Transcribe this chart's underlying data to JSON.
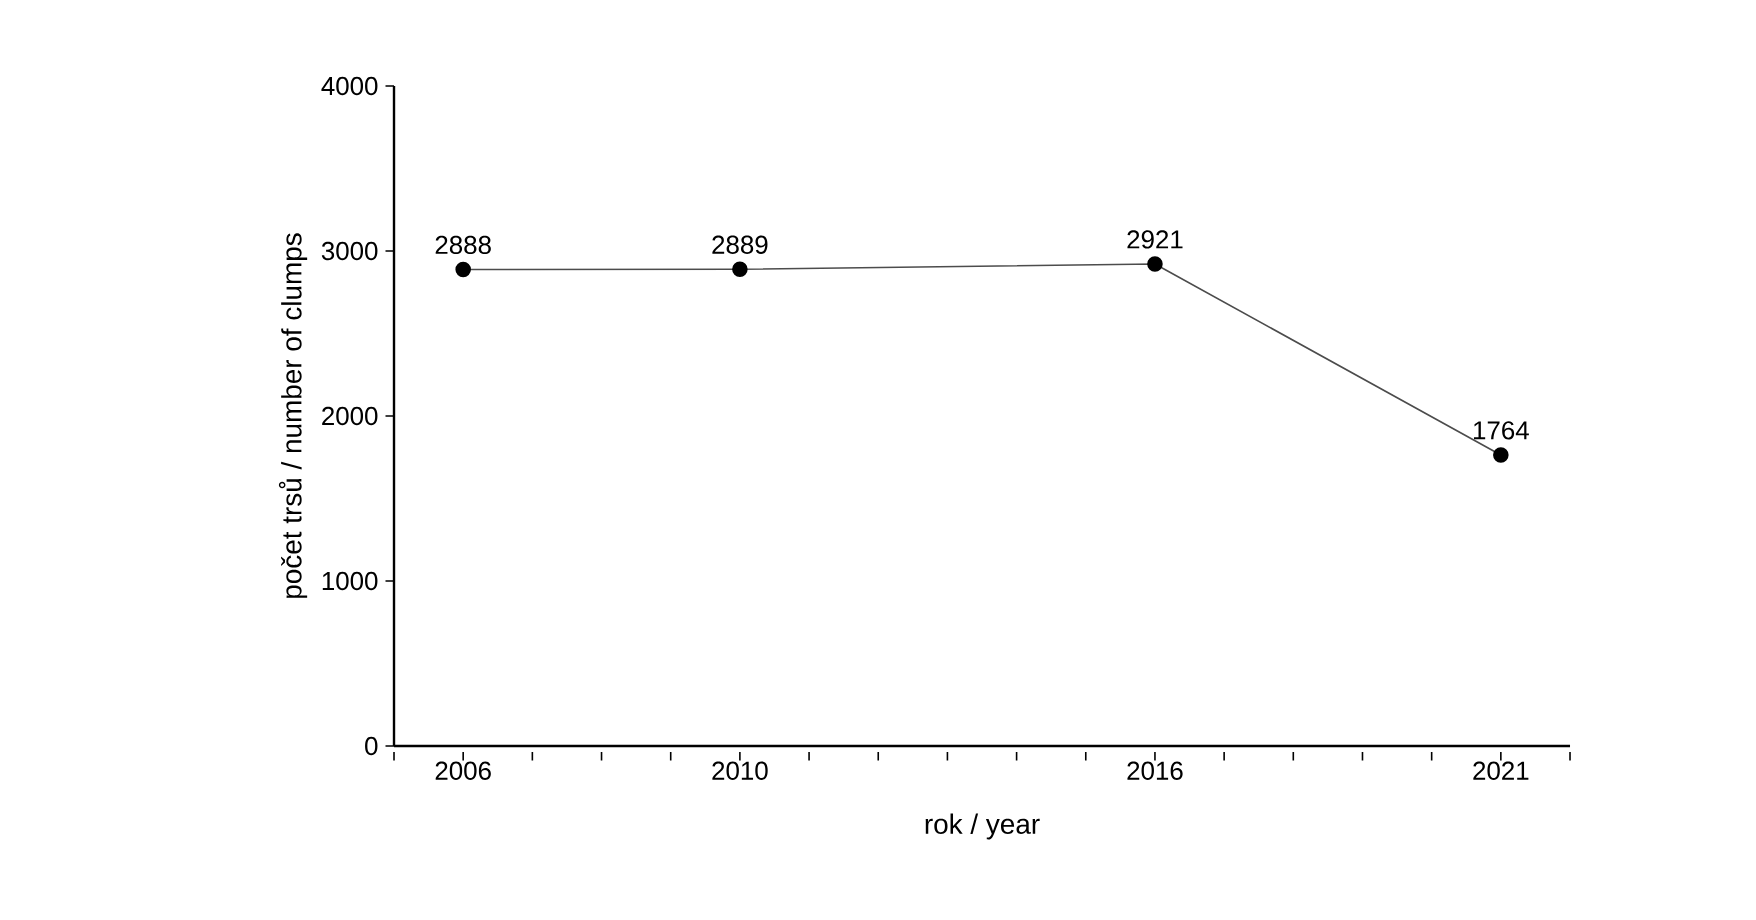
{
  "chart_data": {
    "type": "line",
    "xlabel": "rok / year",
    "ylabel": "počet trsů / number of clumps",
    "x": [
      2006,
      2010,
      2016,
      2021
    ],
    "values": [
      2888,
      2889,
      2921,
      1764
    ],
    "color": "#000000",
    "marker": "circle",
    "line_style": "solid",
    "data_labels": true,
    "xlim": [
      2005,
      2022
    ],
    "xticks": [
      {
        "value": 2005,
        "label": null
      },
      2006,
      {
        "value": 2007,
        "label": null
      },
      {
        "value": 2008,
        "label": null
      },
      {
        "value": 2009,
        "label": null
      },
      2010,
      {
        "value": 2011,
        "label": null
      },
      {
        "value": 2012,
        "label": null
      },
      {
        "value": 2013,
        "label": null
      },
      {
        "value": 2014,
        "label": null
      },
      {
        "value": 2015,
        "label": null
      },
      2016,
      {
        "value": 2017,
        "label": null
      },
      {
        "value": 2018,
        "label": null
      },
      {
        "value": 2019,
        "label": null
      },
      {
        "value": 2020,
        "label": null
      },
      2021,
      {
        "value": 2022,
        "label": null
      }
    ],
    "ylim": [
      0,
      4000
    ],
    "yticks": [
      0,
      1000,
      2000,
      3000,
      4000
    ],
    "grid": false
  }
}
